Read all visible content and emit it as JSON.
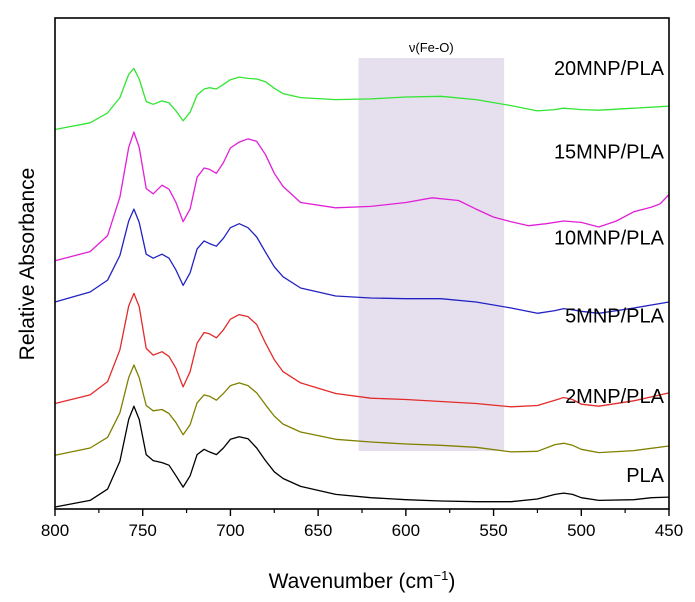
{
  "chart_data": {
    "type": "line",
    "xlabel": "Wavenumber (cm",
    "xlabel_sup": "−1",
    "xlabel_close": ")",
    "ylabel": "Relative Absorbance",
    "xlim": [
      800,
      450
    ],
    "ylim": [
      0,
      7.4
    ],
    "x_ticks": [
      800,
      750,
      700,
      650,
      600,
      550,
      500,
      450
    ],
    "x_tick_labels": [
      "800",
      "750",
      "700",
      "650",
      "600",
      "550",
      "500",
      "450"
    ],
    "shaded_region": {
      "x_from": 627,
      "x_to": 544,
      "label": "ν(Fe-O)",
      "color": "#e6e0ee"
    },
    "series": [
      {
        "name": "PLA",
        "color": "#000000",
        "x": [
          800,
          780,
          770,
          763,
          758,
          755,
          752,
          748,
          744,
          739,
          735,
          731,
          727,
          723,
          719,
          715,
          712,
          708,
          704,
          700,
          695,
          690,
          685,
          680,
          675,
          670,
          660,
          640,
          620,
          600,
          580,
          560,
          540,
          525,
          515,
          510,
          505,
          500,
          490,
          470,
          460,
          450
        ],
        "y": [
          0.03,
          0.13,
          0.3,
          0.72,
          1.35,
          1.55,
          1.35,
          0.82,
          0.73,
          0.7,
          0.66,
          0.5,
          0.33,
          0.5,
          0.82,
          0.9,
          0.86,
          0.82,
          0.92,
          1.05,
          1.09,
          1.06,
          0.92,
          0.73,
          0.56,
          0.46,
          0.34,
          0.22,
          0.17,
          0.14,
          0.12,
          0.11,
          0.11,
          0.15,
          0.22,
          0.24,
          0.22,
          0.17,
          0.13,
          0.14,
          0.17,
          0.18
        ]
      },
      {
        "name": "2MNP/PLA",
        "color": "#808000",
        "x": [
          800,
          780,
          770,
          763,
          758,
          755,
          752,
          748,
          744,
          739,
          735,
          731,
          727,
          723,
          719,
          715,
          712,
          708,
          704,
          700,
          695,
          690,
          685,
          680,
          675,
          670,
          660,
          640,
          620,
          600,
          580,
          560,
          540,
          525,
          515,
          510,
          505,
          500,
          490,
          470,
          450
        ],
        "y": [
          0.81,
          0.92,
          1.08,
          1.45,
          1.98,
          2.17,
          1.98,
          1.56,
          1.48,
          1.5,
          1.44,
          1.3,
          1.12,
          1.27,
          1.6,
          1.72,
          1.7,
          1.64,
          1.74,
          1.86,
          1.9,
          1.86,
          1.75,
          1.57,
          1.4,
          1.28,
          1.16,
          1.05,
          1.01,
          0.98,
          0.96,
          0.93,
          0.86,
          0.87,
          0.97,
          0.99,
          0.96,
          0.9,
          0.85,
          0.88,
          0.95
        ]
      },
      {
        "name": "5MNP/PLA",
        "color": "#e32b2b",
        "x": [
          800,
          780,
          770,
          763,
          758,
          755,
          752,
          748,
          744,
          739,
          735,
          731,
          727,
          723,
          719,
          715,
          712,
          708,
          704,
          700,
          695,
          690,
          685,
          680,
          675,
          670,
          660,
          640,
          620,
          600,
          580,
          560,
          540,
          525,
          515,
          510,
          505,
          500,
          490,
          470,
          450
        ],
        "y": [
          1.59,
          1.72,
          1.92,
          2.4,
          3.06,
          3.25,
          3.05,
          2.42,
          2.32,
          2.37,
          2.3,
          2.12,
          1.84,
          2.07,
          2.5,
          2.66,
          2.64,
          2.58,
          2.7,
          2.86,
          2.93,
          2.9,
          2.78,
          2.5,
          2.25,
          2.07,
          1.9,
          1.74,
          1.67,
          1.65,
          1.62,
          1.59,
          1.54,
          1.56,
          1.64,
          1.68,
          1.65,
          1.58,
          1.55,
          1.63,
          1.75
        ]
      },
      {
        "name": "10MNP/PLA",
        "color": "#2222c4",
        "x": [
          800,
          780,
          770,
          763,
          758,
          755,
          752,
          748,
          744,
          739,
          735,
          731,
          727,
          723,
          719,
          715,
          712,
          708,
          704,
          700,
          695,
          690,
          685,
          680,
          675,
          670,
          660,
          640,
          620,
          600,
          580,
          560,
          540,
          525,
          515,
          510,
          505,
          500,
          490,
          470,
          450
        ],
        "y": [
          3.12,
          3.27,
          3.45,
          3.82,
          4.34,
          4.52,
          4.32,
          3.84,
          3.78,
          3.84,
          3.78,
          3.6,
          3.37,
          3.56,
          3.92,
          4.04,
          4.0,
          3.96,
          4.08,
          4.24,
          4.3,
          4.24,
          4.1,
          3.87,
          3.65,
          3.5,
          3.33,
          3.21,
          3.18,
          3.17,
          3.17,
          3.12,
          3.03,
          2.95,
          2.99,
          3.02,
          3.0,
          2.98,
          2.95,
          3.03,
          3.12
        ]
      },
      {
        "name": "15MNP/PLA",
        "color": "#e11fd8",
        "x": [
          800,
          780,
          770,
          763,
          758,
          755,
          752,
          748,
          744,
          739,
          735,
          731,
          727,
          723,
          719,
          715,
          712,
          708,
          704,
          700,
          695,
          690,
          685,
          680,
          675,
          670,
          660,
          640,
          620,
          600,
          585,
          570,
          560,
          550,
          540,
          530,
          520,
          510,
          500,
          490,
          480,
          470,
          460,
          455,
          450
        ],
        "y": [
          3.74,
          3.88,
          4.12,
          4.7,
          5.45,
          5.68,
          5.45,
          4.83,
          4.75,
          4.88,
          4.82,
          4.62,
          4.33,
          4.52,
          5.0,
          5.14,
          5.12,
          5.06,
          5.22,
          5.44,
          5.53,
          5.58,
          5.54,
          5.34,
          5.06,
          4.86,
          4.62,
          4.54,
          4.56,
          4.62,
          4.69,
          4.65,
          4.52,
          4.4,
          4.33,
          4.27,
          4.3,
          4.34,
          4.32,
          4.25,
          4.34,
          4.48,
          4.55,
          4.6,
          4.74
        ]
      },
      {
        "name": "20MNP/PLA",
        "color": "#33e533",
        "x": [
          800,
          780,
          770,
          763,
          758,
          755,
          752,
          748,
          744,
          739,
          735,
          731,
          727,
          723,
          719,
          715,
          712,
          708,
          704,
          700,
          695,
          690,
          685,
          680,
          675,
          670,
          660,
          640,
          620,
          600,
          580,
          560,
          540,
          525,
          515,
          510,
          505,
          500,
          490,
          470,
          450
        ],
        "y": [
          5.72,
          5.82,
          5.97,
          6.2,
          6.55,
          6.64,
          6.48,
          6.14,
          6.1,
          6.15,
          6.12,
          6.0,
          5.85,
          5.98,
          6.24,
          6.33,
          6.35,
          6.33,
          6.4,
          6.47,
          6.51,
          6.49,
          6.48,
          6.44,
          6.34,
          6.26,
          6.2,
          6.17,
          6.18,
          6.21,
          6.22,
          6.17,
          6.08,
          6.0,
          6.02,
          6.04,
          6.03,
          6.02,
          6.01,
          6.04,
          6.07
        ]
      }
    ],
    "label_anchors": [
      {
        "series": "20MNP/PLA",
        "at_y": 6.54
      },
      {
        "series": "15MNP/PLA",
        "at_y": 5.28
      },
      {
        "series": "10MNP/PLA",
        "at_y": 3.99
      },
      {
        "series": "5MNP/PLA",
        "at_y": 2.81
      },
      {
        "series": "2MNP/PLA",
        "at_y": 1.6
      },
      {
        "series": "PLA",
        "at_y": 0.41
      }
    ]
  }
}
